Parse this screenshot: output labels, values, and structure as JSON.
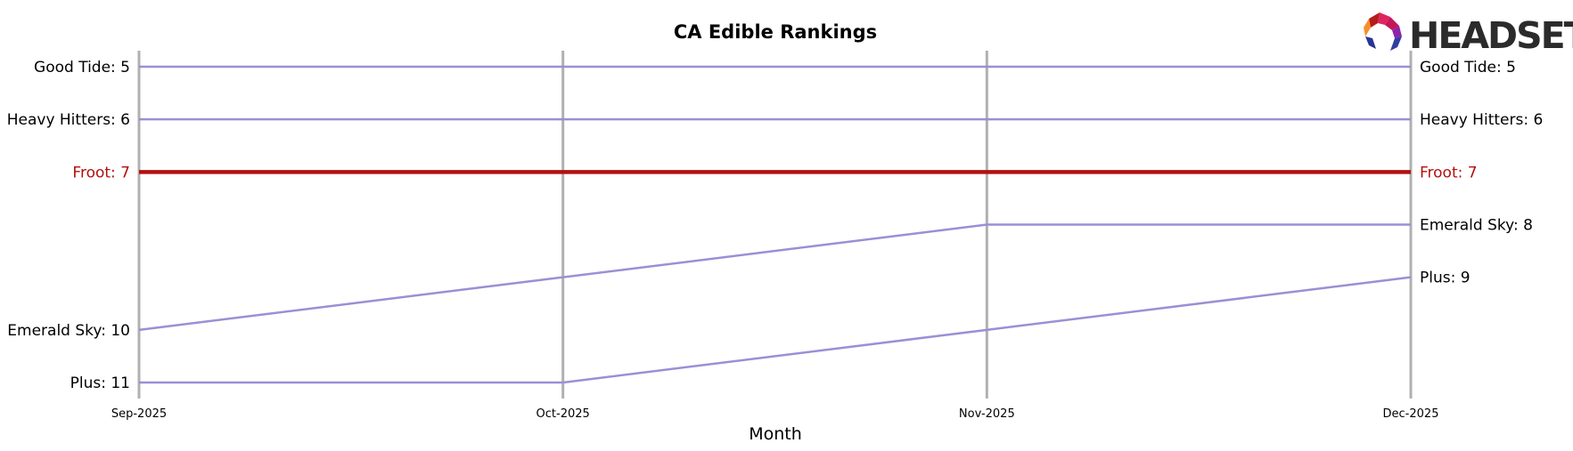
{
  "chart_data": {
    "type": "line",
    "title": "CA Edible Rankings",
    "xlabel": "Month",
    "ylabel": "",
    "x": [
      "Sep-2025",
      "Oct-2025",
      "Nov-2025",
      "Dec-2025"
    ],
    "ylim": [
      11,
      5
    ],
    "y_inverted": true,
    "grid": "vertical lines at each month",
    "legend": "none (series labeled at both ends)",
    "series": [
      {
        "name": "Good Tide",
        "values": [
          5,
          5,
          5,
          5
        ],
        "color": "#9b8fd6",
        "highlight": false,
        "label_left": "Good Tide: 5",
        "label_right": "Good Tide: 5"
      },
      {
        "name": "Heavy Hitters",
        "values": [
          6,
          6,
          6,
          6
        ],
        "color": "#9b8fd6",
        "highlight": false,
        "label_left": "Heavy Hitters: 6",
        "label_right": "Heavy Hitters: 6"
      },
      {
        "name": "Froot",
        "values": [
          7,
          7,
          7,
          7
        ],
        "color": "#b30f0f",
        "highlight": true,
        "label_left": "Froot: 7",
        "label_right": "Froot: 7"
      },
      {
        "name": "Emerald Sky",
        "values": [
          10,
          9,
          8,
          8
        ],
        "color": "#9b8fd6",
        "highlight": false,
        "label_left": "Emerald Sky: 10",
        "label_right": "Emerald Sky: 8"
      },
      {
        "name": "Plus",
        "values": [
          11,
          11,
          10,
          9
        ],
        "color": "#9b8fd6",
        "highlight": false,
        "label_left": "Plus: 11",
        "label_right": "Plus: 9"
      }
    ]
  },
  "colors": {
    "grid": "#b0b0b0",
    "default_line": "#9b8fd6",
    "highlight": "#b30f0f",
    "text": "#000000",
    "logo_text": "#2b2b2b"
  },
  "logo": {
    "text": "HEADSET",
    "icon": "headset-hexagon-logo-icon"
  }
}
